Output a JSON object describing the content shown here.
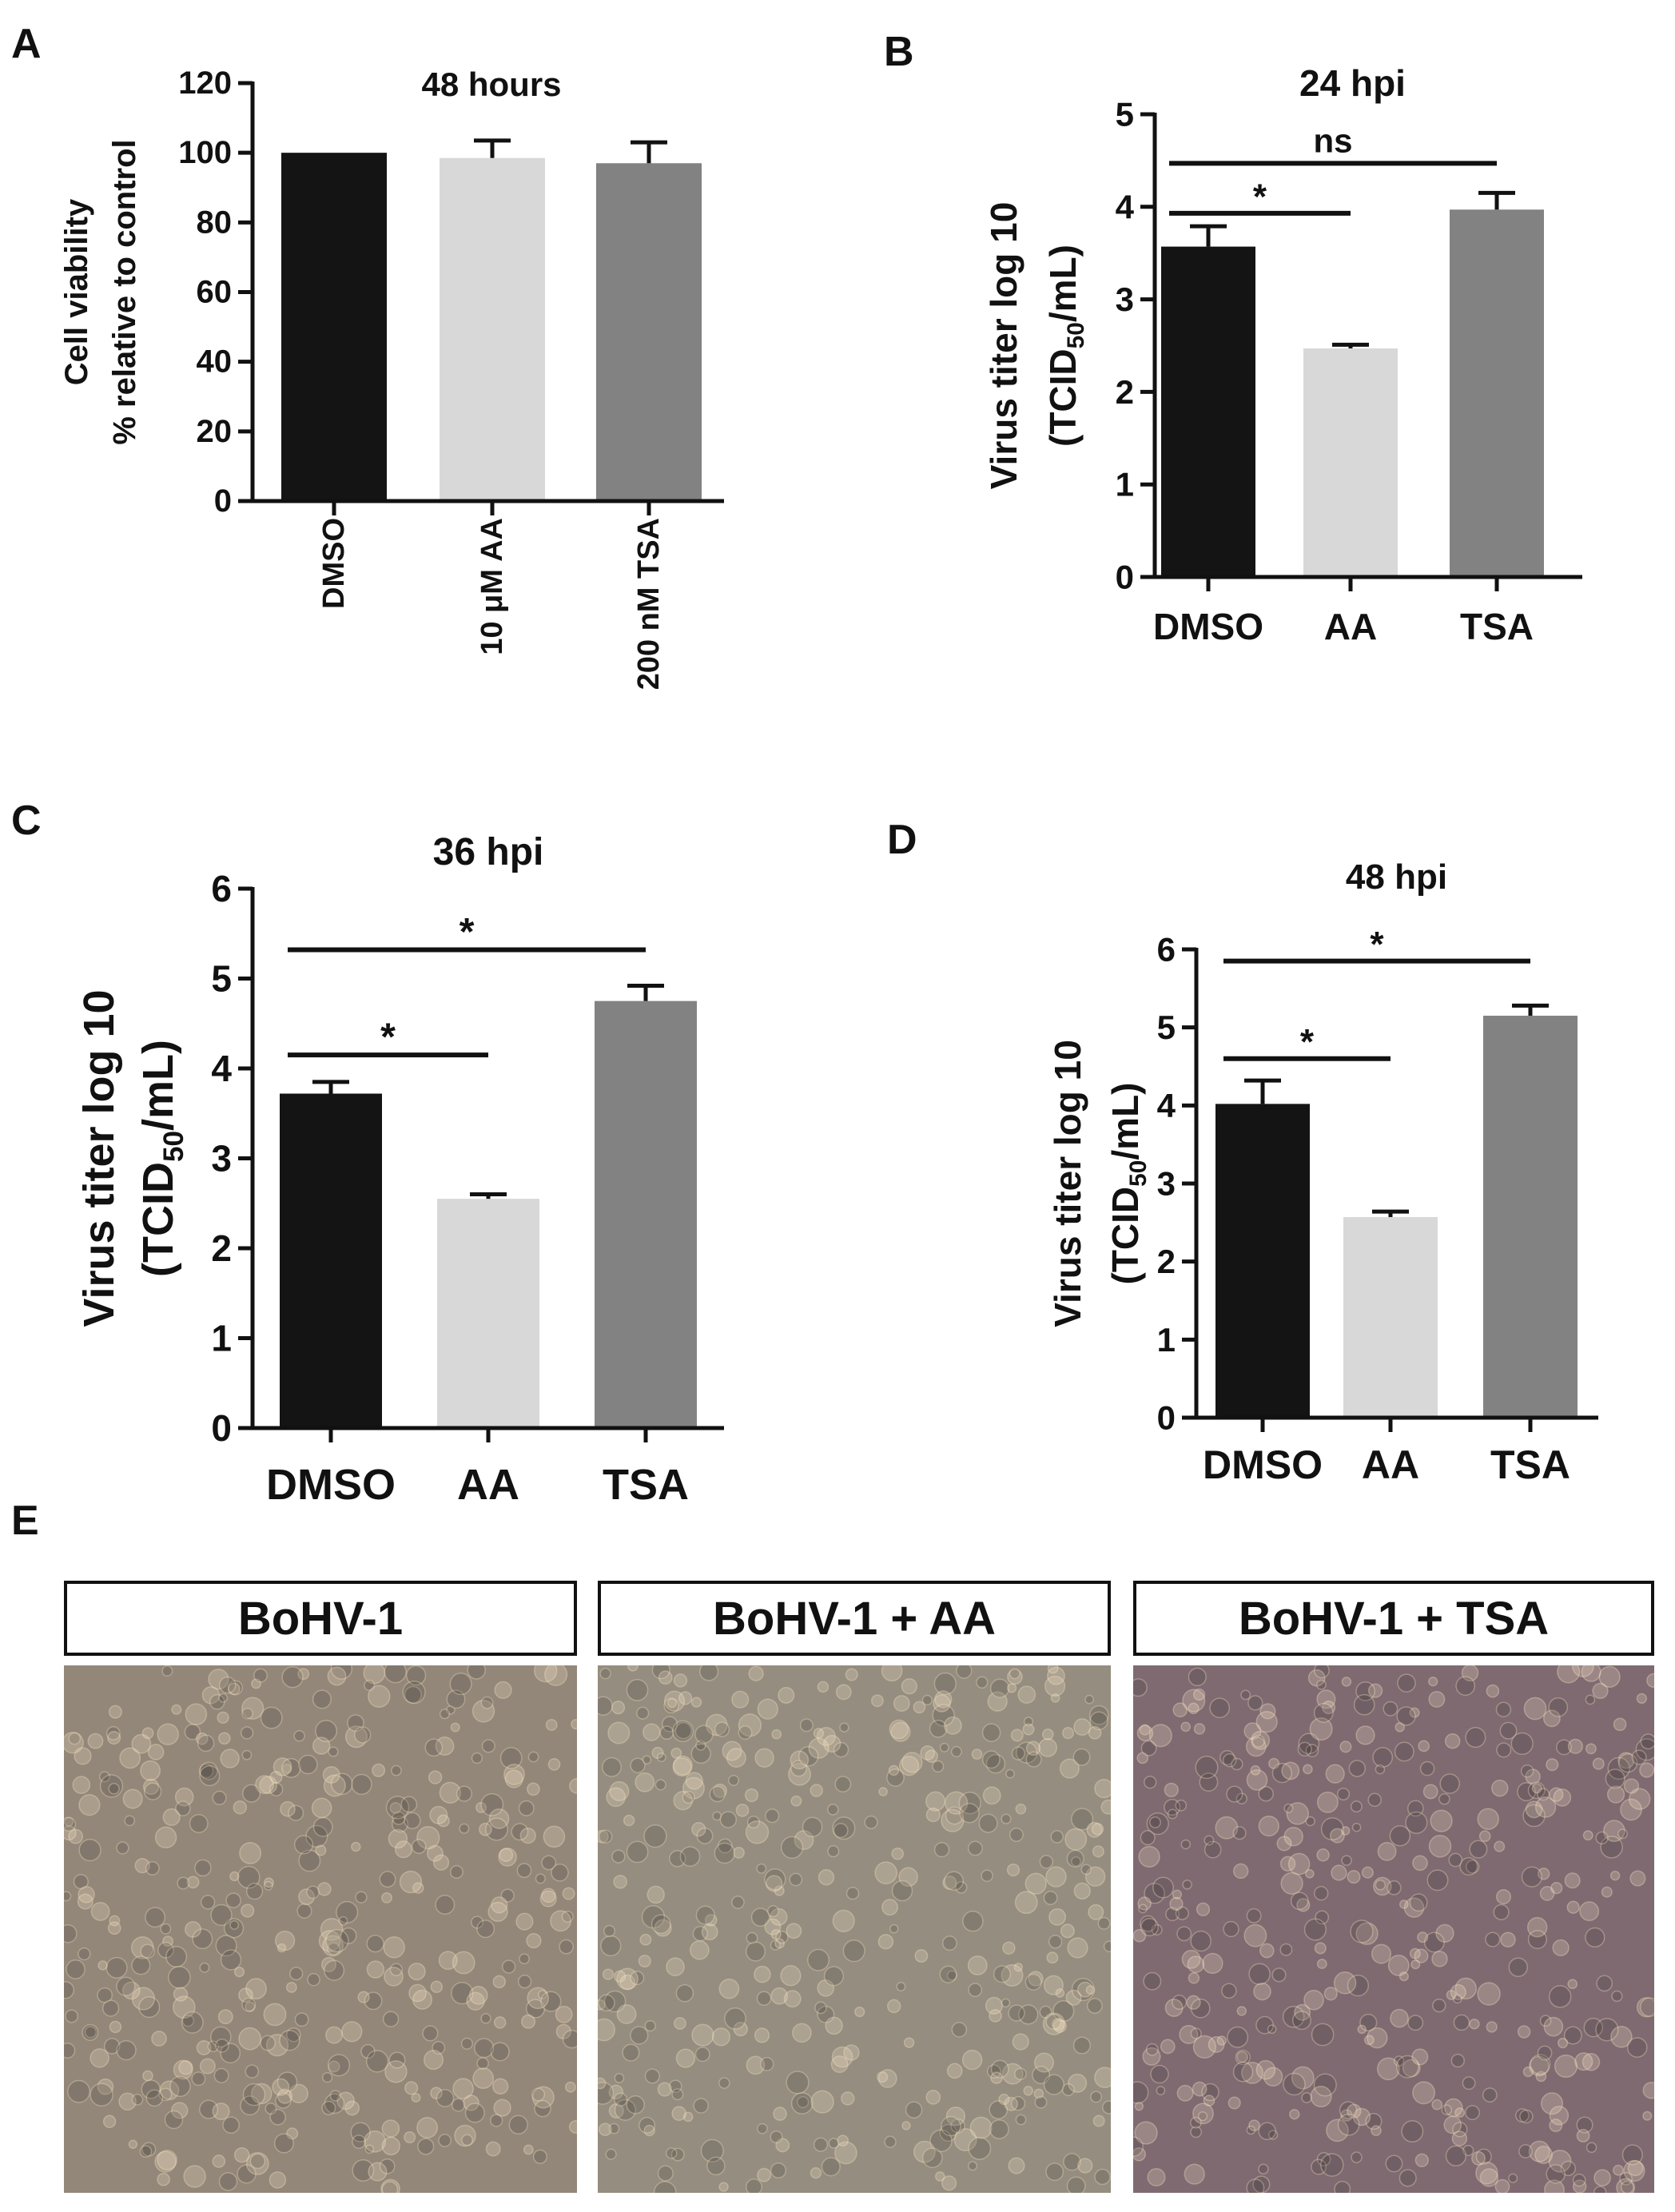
{
  "panel_letters": [
    "A",
    "B",
    "C",
    "D",
    "E"
  ],
  "chart_data": [
    {
      "panel": "A",
      "type": "bar",
      "title": "48 hours",
      "ylabel_lines": [
        "Cell viability",
        "% relative to control"
      ],
      "categories": [
        "DMSO",
        "10 μM AA",
        "200 nM TSA"
      ],
      "values": [
        100,
        98.5,
        97
      ],
      "errors": [
        0,
        5,
        6
      ],
      "ylim": [
        0,
        120
      ],
      "yticks": [
        "0",
        "20",
        "40",
        "60",
        "80",
        "100",
        "120"
      ],
      "significance": []
    },
    {
      "panel": "B",
      "type": "bar",
      "title": "24 hpi",
      "ylabel_lines": [
        "Virus titer log 10",
        "(TCID50/mL)"
      ],
      "categories": [
        "DMSO",
        "AA",
        "TSA"
      ],
      "values": [
        3.57,
        2.47,
        3.97
      ],
      "errors": [
        0.22,
        0.04,
        0.18
      ],
      "ylim": [
        0,
        5
      ],
      "yticks": [
        "0",
        "1",
        "2",
        "3",
        "4",
        "5"
      ],
      "significance": [
        {
          "from": 0,
          "to": 2,
          "y": 4.47,
          "label": "ns"
        },
        {
          "from": 0,
          "to": 1,
          "y": 3.93,
          "label": "*"
        }
      ]
    },
    {
      "panel": "C",
      "type": "bar",
      "title": "36 hpi",
      "ylabel_lines": [
        "Virus titer log 10",
        "(TCID50/mL)"
      ],
      "categories": [
        "DMSO",
        "AA",
        "TSA"
      ],
      "values": [
        3.72,
        2.55,
        4.75
      ],
      "errors": [
        0.13,
        0.05,
        0.17
      ],
      "ylim": [
        0,
        6
      ],
      "yticks": [
        "0",
        "1",
        "2",
        "3",
        "4",
        "5",
        "6"
      ],
      "significance": [
        {
          "from": 0,
          "to": 2,
          "y": 5.32,
          "label": "*"
        },
        {
          "from": 0,
          "to": 1,
          "y": 4.15,
          "label": "*"
        }
      ]
    },
    {
      "panel": "D",
      "type": "bar",
      "title": "48 hpi",
      "ylabel_lines": [
        "Virus titer log 10",
        "(TCID50/mL)"
      ],
      "categories": [
        "DMSO",
        "AA",
        "TSA"
      ],
      "values": [
        4.02,
        2.57,
        5.15
      ],
      "errors": [
        0.3,
        0.07,
        0.13
      ],
      "ylim": [
        0,
        6
      ],
      "yticks": [
        "0",
        "1",
        "2",
        "3",
        "4",
        "5",
        "6"
      ],
      "significance": [
        {
          "from": 0,
          "to": 2,
          "y": 5.85,
          "label": "*"
        },
        {
          "from": 0,
          "to": 1,
          "y": 4.6,
          "label": "*"
        }
      ]
    }
  ],
  "bar_colors": [
    "#141414",
    "#d8d8d8",
    "#828282"
  ],
  "micrographs": [
    {
      "label": "BoHV-1",
      "tint": "#93877a"
    },
    {
      "label": "BoHV-1 + AA",
      "tint": "#958d80"
    },
    {
      "label": "BoHV-1 + TSA",
      "tint": "#7f6a72"
    }
  ]
}
